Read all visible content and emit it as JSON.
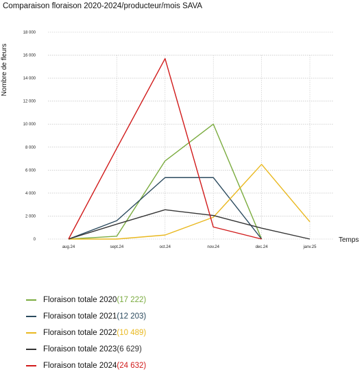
{
  "chart_data": {
    "type": "line",
    "title": "Comparaison floraison 2020-2024/producteur/mois SAVA",
    "ylabel": "Nombre de fleurs",
    "xlabel": "Temps",
    "categories": [
      "aug.24",
      "sept.24",
      "oct.24",
      "nov.24",
      "dec.24",
      "janv.25"
    ],
    "ylim": [
      0,
      18000
    ],
    "yticks": [
      0,
      2000,
      4000,
      6000,
      8000,
      10000,
      12000,
      14000,
      16000,
      18000
    ],
    "ytick_labels": [
      "0",
      "2 000",
      "4 000",
      "6 000",
      "8 000",
      "10 000",
      "12 000",
      "14 000",
      "16 000",
      "18 000"
    ],
    "grid": "horizontal dotted",
    "series": [
      {
        "name": "Floraison totale 2020",
        "total": "17 222",
        "color": "#7aab3e",
        "values": [
          0,
          250,
          6800,
          10000,
          0,
          null
        ]
      },
      {
        "name": "Floraison totale 2021",
        "total": "12 203",
        "color": "#2b4a5e",
        "values": [
          0,
          1600,
          5350,
          5350,
          0,
          null
        ]
      },
      {
        "name": "Floraison totale 2022",
        "total": "10 489",
        "color": "#e9b81f",
        "values": [
          0,
          0,
          350,
          1900,
          6500,
          1500
        ]
      },
      {
        "name": "Floraison totale 2023",
        "total": "6 629",
        "color": "#333333",
        "values": [
          0,
          1300,
          2550,
          2050,
          950,
          0
        ]
      },
      {
        "name": "Floraison totale 2024",
        "total": "24 632",
        "color": "#d11a1a",
        "values": [
          0,
          7900,
          15700,
          1050,
          0,
          null
        ]
      }
    ]
  }
}
